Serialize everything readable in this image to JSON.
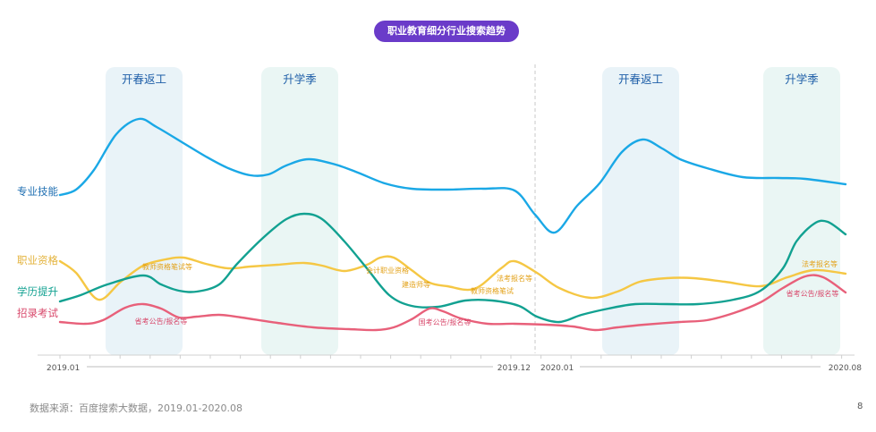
{
  "chart_data": {
    "type": "line",
    "title": "职业教育细分行业搜索趋势",
    "x_axis": {
      "labels": [
        "2019.01",
        "2019.12",
        "2020.01",
        "2020.08"
      ]
    },
    "series": [
      {
        "name": "专业技能",
        "color": "#1aa8e6",
        "points": [
          [
            67,
            218
          ],
          [
            85,
            212
          ],
          [
            105,
            190
          ],
          [
            130,
            150
          ],
          [
            155,
            133
          ],
          [
            175,
            142
          ],
          [
            205,
            160
          ],
          [
            230,
            175
          ],
          [
            255,
            188
          ],
          [
            280,
            196
          ],
          [
            300,
            195
          ],
          [
            320,
            185
          ],
          [
            345,
            178
          ],
          [
            375,
            184
          ],
          [
            400,
            193
          ],
          [
            430,
            205
          ],
          [
            460,
            211
          ],
          [
            500,
            212
          ],
          [
            540,
            211
          ],
          [
            575,
            213
          ],
          [
            598,
            240
          ],
          [
            620,
            260
          ],
          [
            645,
            230
          ],
          [
            670,
            205
          ],
          [
            695,
            170
          ],
          [
            718,
            156
          ],
          [
            740,
            166
          ],
          [
            760,
            178
          ],
          [
            790,
            188
          ],
          [
            830,
            198
          ],
          [
            870,
            199
          ],
          [
            900,
            200
          ],
          [
            945,
            206
          ]
        ]
      },
      {
        "name": "职业资格",
        "color": "#f5c744",
        "points": [
          [
            67,
            292
          ],
          [
            85,
            305
          ],
          [
            110,
            335
          ],
          [
            135,
            315
          ],
          [
            160,
            297
          ],
          [
            185,
            290
          ],
          [
            205,
            288
          ],
          [
            230,
            295
          ],
          [
            255,
            300
          ],
          [
            280,
            298
          ],
          [
            310,
            296
          ],
          [
            340,
            294
          ],
          [
            360,
            297
          ],
          [
            385,
            303
          ],
          [
            410,
            296
          ],
          [
            425,
            288
          ],
          [
            440,
            288
          ],
          [
            460,
            302
          ],
          [
            480,
            316
          ],
          [
            500,
            320
          ],
          [
            530,
            323
          ],
          [
            560,
            300
          ],
          [
            575,
            292
          ],
          [
            600,
            305
          ],
          [
            625,
            322
          ],
          [
            660,
            333
          ],
          [
            690,
            326
          ],
          [
            715,
            315
          ],
          [
            745,
            311
          ],
          [
            775,
            311
          ],
          [
            810,
            315
          ],
          [
            850,
            320
          ],
          [
            880,
            310
          ],
          [
            910,
            302
          ],
          [
            945,
            306
          ]
        ]
      },
      {
        "name": "学历提升",
        "color": "#12a191",
        "points": [
          [
            67,
            337
          ],
          [
            90,
            330
          ],
          [
            120,
            318
          ],
          [
            160,
            308
          ],
          [
            180,
            318
          ],
          [
            200,
            325
          ],
          [
            220,
            326
          ],
          [
            245,
            318
          ],
          [
            265,
            295
          ],
          [
            295,
            265
          ],
          [
            320,
            245
          ],
          [
            340,
            239
          ],
          [
            360,
            245
          ],
          [
            385,
            270
          ],
          [
            410,
            300
          ],
          [
            435,
            330
          ],
          [
            460,
            342
          ],
          [
            490,
            343
          ],
          [
            520,
            336
          ],
          [
            550,
            336
          ],
          [
            580,
            342
          ],
          [
            600,
            354
          ],
          [
            625,
            360
          ],
          [
            650,
            352
          ],
          [
            680,
            345
          ],
          [
            710,
            340
          ],
          [
            745,
            340
          ],
          [
            780,
            340
          ],
          [
            820,
            335
          ],
          [
            850,
            325
          ],
          [
            875,
            300
          ],
          [
            890,
            270
          ],
          [
            910,
            250
          ],
          [
            925,
            248
          ],
          [
            945,
            262
          ]
        ]
      },
      {
        "name": "招录考试",
        "color": "#e8607a",
        "points": [
          [
            67,
            360
          ],
          [
            95,
            362
          ],
          [
            115,
            358
          ],
          [
            140,
            344
          ],
          [
            160,
            340
          ],
          [
            180,
            345
          ],
          [
            200,
            355
          ],
          [
            220,
            354
          ],
          [
            245,
            352
          ],
          [
            270,
            355
          ],
          [
            310,
            361
          ],
          [
            350,
            366
          ],
          [
            390,
            368
          ],
          [
            420,
            369
          ],
          [
            440,
            366
          ],
          [
            460,
            357
          ],
          [
            480,
            345
          ],
          [
            495,
            348
          ],
          [
            515,
            356
          ],
          [
            545,
            362
          ],
          [
            575,
            362
          ],
          [
            610,
            363
          ],
          [
            640,
            365
          ],
          [
            665,
            369
          ],
          [
            690,
            366
          ],
          [
            720,
            363
          ],
          [
            760,
            360
          ],
          [
            790,
            358
          ],
          [
            820,
            350
          ],
          [
            850,
            338
          ],
          [
            875,
            322
          ],
          [
            900,
            309
          ],
          [
            920,
            310
          ],
          [
            945,
            327
          ]
        ]
      }
    ],
    "season_bands": [
      {
        "label": "开春返工"
      },
      {
        "label": "升学季"
      },
      {
        "label": "开春返工"
      },
      {
        "label": "升学季"
      }
    ],
    "annotations": [
      {
        "text": "教师资格笔试等",
        "color": "#e3a21a"
      },
      {
        "text": "省考公告/报名等",
        "color": "#d8476a"
      },
      {
        "text": "会计职业资格",
        "color": "#e3a21a"
      },
      {
        "text": "建造师等",
        "color": "#e3a21a"
      },
      {
        "text": "教师资格笔试",
        "color": "#e3a21a"
      },
      {
        "text": "法考报名等",
        "color": "#e3a21a"
      },
      {
        "text": "国考公告/报名等",
        "color": "#d8476a"
      },
      {
        "text": "法考报名等",
        "color": "#e3a21a"
      },
      {
        "text": "省考公告/报名等",
        "color": "#d8476a"
      }
    ],
    "grid": false,
    "divider": "dashed vertical line between 2019.12 and 2020.01"
  },
  "footer": {
    "source": "数据来源：百度搜索大数据，2019.01-2020.08",
    "page_number": "8"
  }
}
